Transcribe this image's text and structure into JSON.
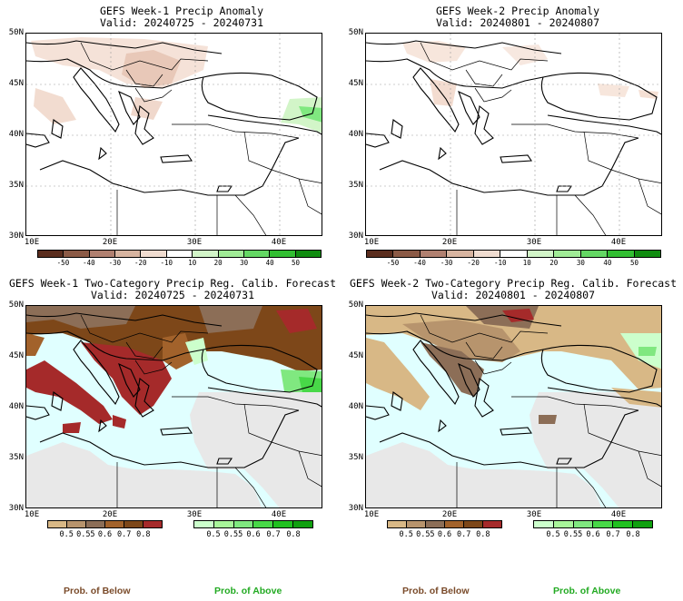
{
  "panels": {
    "p1": {
      "title": "GEFS Week-1 Precip Anomaly",
      "valid": "Valid: 20240725 - 20240731"
    },
    "p2": {
      "title": "GEFS Week-2 Precip Anomaly",
      "valid": "Valid: 20240801 - 20240807"
    },
    "p3": {
      "title": "GEFS Week-1 Two-Category Precip Reg. Calib. Forecast",
      "valid": "Valid: 20240725 - 20240731"
    },
    "p4": {
      "title": "GEFS Week-2 Two-Category Precip Reg. Calib. Forecast",
      "valid": "Valid: 20240801 - 20240807"
    }
  },
  "lat_labels": [
    "50N",
    "45N",
    "40N",
    "35N",
    "30N"
  ],
  "lon_labels": [
    "10E",
    "20E",
    "30E",
    "40E"
  ],
  "anomaly_scale": {
    "labels": [
      "-50",
      "-40",
      "-30",
      "-20",
      "-10",
      "10",
      "20",
      "30",
      "40",
      "50"
    ],
    "colors": [
      "#5a2d1e",
      "#8b5a46",
      "#b08070",
      "#d7b4a0",
      "#f0dcd0",
      "#ffffff",
      "#d2f5c8",
      "#a0eb96",
      "#64d764",
      "#32be32",
      "#108c10"
    ]
  },
  "prob_below": {
    "labels": [
      "0.5",
      "0.55",
      "0.6",
      "0.7",
      "0.8"
    ],
    "colors": [
      "#d8b886",
      "#b7946d",
      "#8c6e57",
      "#a2622b",
      "#7d4719",
      "#a52a2a"
    ]
  },
  "prob_above": {
    "labels": [
      "0.5",
      "0.55",
      "0.6",
      "0.7",
      "0.8"
    ],
    "colors": [
      "#ccffcc",
      "#a8f59a",
      "#80e880",
      "#48d848",
      "#20c020",
      "#10a010"
    ]
  },
  "legend": {
    "below": "Prob. of Below",
    "above": "Prob. of Above",
    "below_color": "#7a4b2a",
    "above_color": "#22aa22"
  },
  "map_colors": {
    "sea_prob": "#e0ffff",
    "no_signal": "#e8e8e8",
    "land_white": "#ffffff"
  }
}
